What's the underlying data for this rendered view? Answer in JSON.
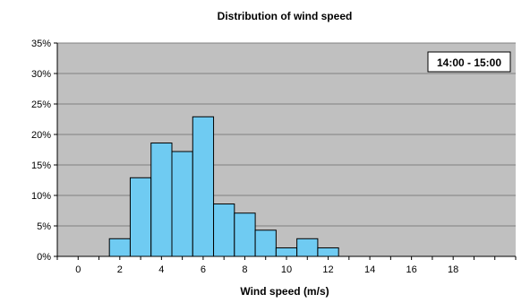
{
  "chart_data": {
    "type": "bar",
    "title": "Distribution of wind speed",
    "xlabel": "Wind speed (m/s)",
    "ylabel": "",
    "annotation": "14:00 - 15:00",
    "x_ticks": [
      "0",
      "2",
      "4",
      "6",
      "8",
      "10",
      "12",
      "14",
      "16",
      "18"
    ],
    "x_tick_values": [
      0,
      2,
      4,
      6,
      8,
      10,
      12,
      14,
      16,
      18
    ],
    "y_ticks": [
      "0%",
      "5%",
      "10%",
      "15%",
      "20%",
      "25%",
      "30%",
      "35%"
    ],
    "y_tick_values": [
      0,
      5,
      10,
      15,
      20,
      25,
      30,
      35
    ],
    "xlim": [
      -1,
      21
    ],
    "ylim": [
      0,
      35
    ],
    "bin_width": 1,
    "bins": [
      {
        "x": 2,
        "value": 2.9
      },
      {
        "x": 3,
        "value": 12.9
      },
      {
        "x": 4,
        "value": 18.6
      },
      {
        "x": 5,
        "value": 17.2
      },
      {
        "x": 6,
        "value": 22.9
      },
      {
        "x": 7,
        "value": 8.6
      },
      {
        "x": 8,
        "value": 7.1
      },
      {
        "x": 9,
        "value": 4.3
      },
      {
        "x": 10,
        "value": 1.4
      },
      {
        "x": 11,
        "value": 2.9
      },
      {
        "x": 12,
        "value": 1.4
      }
    ],
    "grid": true,
    "colors": {
      "bar_fill": "#6FCBF2",
      "bar_stroke": "#000000",
      "plot_bg": "#C0C0C0",
      "grid": "#808080"
    }
  }
}
